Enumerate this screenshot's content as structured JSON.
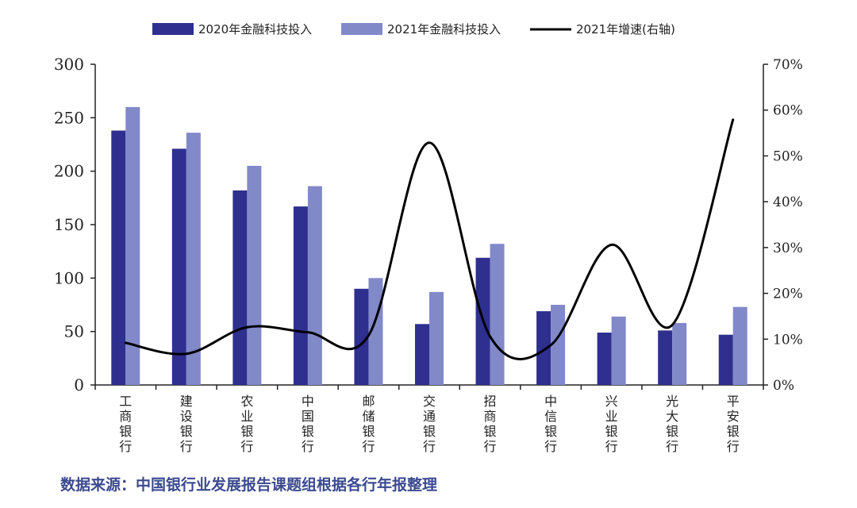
{
  "chart_data": {
    "type": "bar",
    "categories": [
      "工商银行",
      "建设银行",
      "农业银行",
      "中国银行",
      "邮储银行",
      "交通银行",
      "招商银行",
      "中信银行",
      "兴业银行",
      "光大银行",
      "平安银行"
    ],
    "series": [
      {
        "name": "2020年金融科技投入",
        "kind": "bar",
        "axis": "left",
        "color": "#2e2f8f",
        "values": [
          238,
          221,
          182,
          167,
          90,
          57,
          119,
          69,
          49,
          51,
          47
        ]
      },
      {
        "name": "2021年金融科技投入",
        "kind": "bar",
        "axis": "left",
        "color": "#8189c9",
        "values": [
          260,
          236,
          205,
          186,
          100,
          87,
          132,
          75,
          64,
          58,
          73
        ]
      },
      {
        "name": "2021年增速(右轴)",
        "kind": "line",
        "axis": "right",
        "color": "#000000",
        "values": [
          9.2,
          6.8,
          12.6,
          11.5,
          10.8,
          52.9,
          10.6,
          8.7,
          30.6,
          13.1,
          57.9
        ]
      }
    ],
    "left_axis": {
      "min": 0,
      "max": 300,
      "ticks": [
        0,
        50,
        100,
        150,
        200,
        250,
        300
      ]
    },
    "right_axis": {
      "min": 0,
      "max": 70,
      "ticks": [
        "0%",
        "10%",
        "20%",
        "30%",
        "40%",
        "50%",
        "60%",
        "70%"
      ]
    },
    "grid": false,
    "legend_position": "top"
  },
  "legend": {
    "item1": "2020年金融科技投入",
    "item2": "2021年金融科技投入",
    "item3": "2021年增速(右轴)"
  },
  "source_text": "数据来源：中国银行业发展报告课题组根据各行年报整理"
}
